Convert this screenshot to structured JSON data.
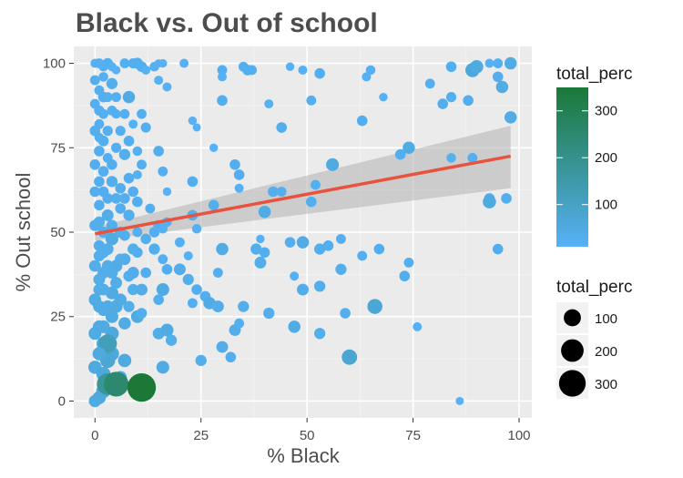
{
  "chart_data": {
    "type": "scatter",
    "title": "Black vs. Out of school",
    "xlabel": "% Black",
    "ylabel": "% Out school",
    "xlim": [
      -5,
      103
    ],
    "ylim": [
      -5,
      105
    ],
    "x_ticks": [
      0,
      25,
      50,
      75,
      100
    ],
    "y_ticks": [
      0,
      25,
      50,
      75,
      100
    ],
    "x_tick_labels": [
      "0",
      "25",
      "50",
      "75",
      "100"
    ],
    "y_tick_labels": [
      "0",
      "25",
      "50",
      "75",
      "100"
    ],
    "grid": true,
    "color_scale": {
      "variable": "total_perc",
      "title": "total_perc",
      "low_color": "#56B1F7",
      "high_color": "#1B7837",
      "low": 10,
      "high": 350,
      "breaks": [
        100,
        200,
        300
      ],
      "break_labels": [
        "100",
        "200",
        "300"
      ]
    },
    "size_scale": {
      "variable": "total_perc",
      "title": "total_perc",
      "breaks": [
        100,
        200,
        300
      ],
      "break_labels": [
        "100",
        "200",
        "300"
      ]
    },
    "legend_position": "right",
    "trend_line": {
      "method": "lm",
      "color": "#E8533F",
      "x": [
        0,
        98
      ],
      "y": [
        49.5,
        72.5
      ],
      "ci_upper_y": [
        51.5,
        81.5
      ],
      "ci_lower_y": [
        47.5,
        63.0
      ],
      "ci_color": "#b3b3b3"
    },
    "points": [
      {
        "x": 0,
        "y": 100,
        "t": 15
      },
      {
        "x": 1,
        "y": 100,
        "t": 20
      },
      {
        "x": 2,
        "y": 99,
        "t": 18
      },
      {
        "x": 3,
        "y": 100,
        "t": 25
      },
      {
        "x": 4,
        "y": 99,
        "t": 15
      },
      {
        "x": 5,
        "y": 98,
        "t": 12
      },
      {
        "x": 7,
        "y": 100,
        "t": 20
      },
      {
        "x": 9,
        "y": 100,
        "t": 22
      },
      {
        "x": 10,
        "y": 100,
        "t": 30
      },
      {
        "x": 11,
        "y": 99,
        "t": 25
      },
      {
        "x": 12,
        "y": 98,
        "t": 15
      },
      {
        "x": 14,
        "y": 99,
        "t": 18
      },
      {
        "x": 15,
        "y": 100,
        "t": 10
      },
      {
        "x": 16,
        "y": 100,
        "t": 12
      },
      {
        "x": 21,
        "y": 100,
        "t": 15
      },
      {
        "x": 30,
        "y": 98,
        "t": 20
      },
      {
        "x": 30,
        "y": 96,
        "t": 15
      },
      {
        "x": 35,
        "y": 99,
        "t": 20
      },
      {
        "x": 36,
        "y": 98,
        "t": 25
      },
      {
        "x": 37,
        "y": 98,
        "t": 20
      },
      {
        "x": 46,
        "y": 99,
        "t": 12
      },
      {
        "x": 49,
        "y": 98,
        "t": 15
      },
      {
        "x": 53,
        "y": 97,
        "t": 25
      },
      {
        "x": 65,
        "y": 98,
        "t": 18
      },
      {
        "x": 64,
        "y": 96,
        "t": 12
      },
      {
        "x": 84,
        "y": 99,
        "t": 25
      },
      {
        "x": 89,
        "y": 98,
        "t": 60
      },
      {
        "x": 90,
        "y": 99,
        "t": 50
      },
      {
        "x": 93,
        "y": 100,
        "t": 15
      },
      {
        "x": 95,
        "y": 100,
        "t": 20
      },
      {
        "x": 98,
        "y": 100,
        "t": 40
      },
      {
        "x": 2,
        "y": 90,
        "t": 25
      },
      {
        "x": 4,
        "y": 94,
        "t": 30
      },
      {
        "x": 8,
        "y": 90,
        "t": 40
      },
      {
        "x": 15,
        "y": 95,
        "t": 15
      },
      {
        "x": 17,
        "y": 93,
        "t": 15
      },
      {
        "x": 30,
        "y": 89,
        "t": 25
      },
      {
        "x": 41,
        "y": 88,
        "t": 15
      },
      {
        "x": 51,
        "y": 89,
        "t": 20
      },
      {
        "x": 64,
        "y": 96,
        "t": 15
      },
      {
        "x": 68,
        "y": 90,
        "t": 12
      },
      {
        "x": 79,
        "y": 94,
        "t": 20
      },
      {
        "x": 82,
        "y": 88,
        "t": 25
      },
      {
        "x": 84,
        "y": 90,
        "t": 22
      },
      {
        "x": 88,
        "y": 89,
        "t": 25
      },
      {
        "x": 96,
        "y": 93,
        "t": 40
      },
      {
        "x": 95,
        "y": 96,
        "t": 25
      },
      {
        "x": 1,
        "y": 82,
        "t": 20
      },
      {
        "x": 5,
        "y": 85,
        "t": 18
      },
      {
        "x": 9,
        "y": 82,
        "t": 15
      },
      {
        "x": 11,
        "y": 85,
        "t": 20
      },
      {
        "x": 12,
        "y": 81,
        "t": 22
      },
      {
        "x": 23,
        "y": 83,
        "t": 12
      },
      {
        "x": 24,
        "y": 81,
        "t": 10
      },
      {
        "x": 44,
        "y": 81,
        "t": 25
      },
      {
        "x": 63,
        "y": 83,
        "t": 25
      },
      {
        "x": 98,
        "y": 84,
        "t": 40
      },
      {
        "x": 1,
        "y": 78,
        "t": 18
      },
      {
        "x": 3,
        "y": 72,
        "t": 20
      },
      {
        "x": 5,
        "y": 75,
        "t": 22
      },
      {
        "x": 7,
        "y": 73,
        "t": 30
      },
      {
        "x": 10,
        "y": 74,
        "t": 18
      },
      {
        "x": 15,
        "y": 74,
        "t": 25
      },
      {
        "x": 28,
        "y": 75,
        "t": 12
      },
      {
        "x": 33,
        "y": 70,
        "t": 25
      },
      {
        "x": 56,
        "y": 70,
        "t": 45
      },
      {
        "x": 72,
        "y": 73,
        "t": 25
      },
      {
        "x": 74,
        "y": 75,
        "t": 40
      },
      {
        "x": 84,
        "y": 72,
        "t": 18
      },
      {
        "x": 89,
        "y": 72,
        "t": 20
      },
      {
        "x": 2,
        "y": 68,
        "t": 25
      },
      {
        "x": 4,
        "y": 65,
        "t": 30
      },
      {
        "x": 8,
        "y": 66,
        "t": 25
      },
      {
        "x": 10,
        "y": 67,
        "t": 15
      },
      {
        "x": 11,
        "y": 70,
        "t": 20
      },
      {
        "x": 16,
        "y": 68,
        "t": 20
      },
      {
        "x": 17,
        "y": 62,
        "t": 12
      },
      {
        "x": 23,
        "y": 65,
        "t": 25
      },
      {
        "x": 34,
        "y": 67,
        "t": 25
      },
      {
        "x": 34,
        "y": 63,
        "t": 15
      },
      {
        "x": 42,
        "y": 62,
        "t": 25
      },
      {
        "x": 44,
        "y": 62,
        "t": 20
      },
      {
        "x": 52,
        "y": 64,
        "t": 20
      },
      {
        "x": 93,
        "y": 60,
        "t": 25
      },
      {
        "x": 93,
        "y": 59,
        "t": 50
      },
      {
        "x": 97,
        "y": 60,
        "t": 25
      },
      {
        "x": 1,
        "y": 58,
        "t": 25
      },
      {
        "x": 3,
        "y": 55,
        "t": 35
      },
      {
        "x": 6,
        "y": 57,
        "t": 25
      },
      {
        "x": 10,
        "y": 59,
        "t": 25
      },
      {
        "x": 13,
        "y": 57,
        "t": 20
      },
      {
        "x": 15,
        "y": 52,
        "t": 25
      },
      {
        "x": 17,
        "y": 53,
        "t": 18
      },
      {
        "x": 23,
        "y": 55,
        "t": 25
      },
      {
        "x": 28,
        "y": 58,
        "t": 25
      },
      {
        "x": 40,
        "y": 56,
        "t": 40
      },
      {
        "x": 51,
        "y": 59,
        "t": 25
      },
      {
        "x": 2,
        "y": 50,
        "t": 30
      },
      {
        "x": 4,
        "y": 48,
        "t": 45
      },
      {
        "x": 7,
        "y": 49,
        "t": 25
      },
      {
        "x": 10,
        "y": 50,
        "t": 20
      },
      {
        "x": 12,
        "y": 48,
        "t": 25
      },
      {
        "x": 14,
        "y": 50,
        "t": 25
      },
      {
        "x": 16,
        "y": 51,
        "t": 18
      },
      {
        "x": 20,
        "y": 47,
        "t": 20
      },
      {
        "x": 24,
        "y": 51,
        "t": 18
      },
      {
        "x": 39,
        "y": 48,
        "t": 12
      },
      {
        "x": 46,
        "y": 47,
        "t": 25
      },
      {
        "x": 49,
        "y": 47,
        "t": 40
      },
      {
        "x": 58,
        "y": 48,
        "t": 20
      },
      {
        "x": 95,
        "y": 45,
        "t": 25
      },
      {
        "x": 1,
        "y": 43,
        "t": 30
      },
      {
        "x": 3,
        "y": 45,
        "t": 35
      },
      {
        "x": 6,
        "y": 42,
        "t": 30
      },
      {
        "x": 10,
        "y": 44,
        "t": 25
      },
      {
        "x": 14,
        "y": 45,
        "t": 30
      },
      {
        "x": 16,
        "y": 42,
        "t": 20
      },
      {
        "x": 22,
        "y": 43,
        "t": 15
      },
      {
        "x": 30,
        "y": 45,
        "t": 40
      },
      {
        "x": 38,
        "y": 45,
        "t": 30
      },
      {
        "x": 40,
        "y": 44,
        "t": 25
      },
      {
        "x": 53,
        "y": 45,
        "t": 30
      },
      {
        "x": 55,
        "y": 46,
        "t": 25
      },
      {
        "x": 63,
        "y": 43,
        "t": 20
      },
      {
        "x": 67,
        "y": 45,
        "t": 25
      },
      {
        "x": 74,
        "y": 41,
        "t": 20
      },
      {
        "x": 2,
        "y": 38,
        "t": 35
      },
      {
        "x": 5,
        "y": 40,
        "t": 40
      },
      {
        "x": 8,
        "y": 37,
        "t": 30
      },
      {
        "x": 12,
        "y": 38,
        "t": 25
      },
      {
        "x": 17,
        "y": 39,
        "t": 25
      },
      {
        "x": 20,
        "y": 39,
        "t": 35
      },
      {
        "x": 22,
        "y": 36,
        "t": 30
      },
      {
        "x": 29,
        "y": 38,
        "t": 20
      },
      {
        "x": 39,
        "y": 41,
        "t": 35
      },
      {
        "x": 47,
        "y": 37,
        "t": 15
      },
      {
        "x": 58,
        "y": 39,
        "t": 30
      },
      {
        "x": 73,
        "y": 37,
        "t": 25
      },
      {
        "x": 1,
        "y": 33,
        "t": 35
      },
      {
        "x": 4,
        "y": 32,
        "t": 45
      },
      {
        "x": 9,
        "y": 33,
        "t": 30
      },
      {
        "x": 11,
        "y": 33,
        "t": 35
      },
      {
        "x": 16,
        "y": 33,
        "t": 45
      },
      {
        "x": 24,
        "y": 33,
        "t": 25
      },
      {
        "x": 26,
        "y": 31,
        "t": 25
      },
      {
        "x": 49,
        "y": 33,
        "t": 35
      },
      {
        "x": 53,
        "y": 34,
        "t": 30
      },
      {
        "x": 2,
        "y": 27,
        "t": 40
      },
      {
        "x": 5,
        "y": 28,
        "t": 45
      },
      {
        "x": 8,
        "y": 28,
        "t": 30
      },
      {
        "x": 15,
        "y": 30,
        "t": 25
      },
      {
        "x": 23,
        "y": 29,
        "t": 20
      },
      {
        "x": 27,
        "y": 29,
        "t": 40
      },
      {
        "x": 29,
        "y": 28,
        "t": 35
      },
      {
        "x": 35,
        "y": 28,
        "t": 30
      },
      {
        "x": 41,
        "y": 26,
        "t": 30
      },
      {
        "x": 59,
        "y": 26,
        "t": 25
      },
      {
        "x": 66,
        "y": 28,
        "t": 70
      },
      {
        "x": 1,
        "y": 22,
        "t": 45
      },
      {
        "x": 4,
        "y": 20,
        "t": 55
      },
      {
        "x": 7,
        "y": 23,
        "t": 40
      },
      {
        "x": 10,
        "y": 25,
        "t": 45
      },
      {
        "x": 11,
        "y": 26,
        "t": 25
      },
      {
        "x": 15,
        "y": 20,
        "t": 35
      },
      {
        "x": 17,
        "y": 21,
        "t": 45
      },
      {
        "x": 18,
        "y": 18,
        "t": 30
      },
      {
        "x": 33,
        "y": 21,
        "t": 35
      },
      {
        "x": 34,
        "y": 23,
        "t": 20
      },
      {
        "x": 47,
        "y": 22,
        "t": 40
      },
      {
        "x": 53,
        "y": 20,
        "t": 30
      },
      {
        "x": 76,
        "y": 22,
        "t": 15
      },
      {
        "x": 2,
        "y": 17,
        "t": 55
      },
      {
        "x": 4,
        "y": 14,
        "t": 60
      },
      {
        "x": 7,
        "y": 12,
        "t": 50
      },
      {
        "x": 30,
        "y": 16,
        "t": 35
      },
      {
        "x": 32,
        "y": 13,
        "t": 25
      },
      {
        "x": 60,
        "y": 13,
        "t": 75
      },
      {
        "x": 3,
        "y": 17,
        "t": 120
      },
      {
        "x": 0,
        "y": 10,
        "t": 50
      },
      {
        "x": 2,
        "y": 8,
        "t": 60
      },
      {
        "x": 3,
        "y": 12,
        "t": 70
      },
      {
        "x": 6,
        "y": 7,
        "t": 45
      },
      {
        "x": 16,
        "y": 10,
        "t": 45
      },
      {
        "x": 25,
        "y": 12,
        "t": 30
      },
      {
        "x": 0,
        "y": 0,
        "t": 40
      },
      {
        "x": 1,
        "y": 1,
        "t": 50
      },
      {
        "x": 2,
        "y": 3,
        "t": 60
      },
      {
        "x": 3,
        "y": 5,
        "t": 180
      },
      {
        "x": 4,
        "y": 5,
        "t": 60
      },
      {
        "x": 5,
        "y": 5,
        "t": 250
      },
      {
        "x": 11,
        "y": 4,
        "t": 350
      },
      {
        "x": 86,
        "y": 0,
        "t": 10
      },
      {
        "x": 0,
        "y": 95,
        "t": 20
      },
      {
        "x": 0,
        "y": 88,
        "t": 20
      },
      {
        "x": 0,
        "y": 80,
        "t": 25
      },
      {
        "x": 0,
        "y": 70,
        "t": 25
      },
      {
        "x": 0,
        "y": 62,
        "t": 25
      },
      {
        "x": 0,
        "y": 52,
        "t": 30
      },
      {
        "x": 0,
        "y": 40,
        "t": 35
      },
      {
        "x": 0,
        "y": 30,
        "t": 40
      },
      {
        "x": 0,
        "y": 20,
        "t": 45
      },
      {
        "x": 1,
        "y": 92,
        "t": 20
      },
      {
        "x": 1,
        "y": 86,
        "t": 22
      },
      {
        "x": 1,
        "y": 74,
        "t": 25
      },
      {
        "x": 1,
        "y": 65,
        "t": 25
      },
      {
        "x": 1,
        "y": 53,
        "t": 30
      },
      {
        "x": 1,
        "y": 46,
        "t": 30
      },
      {
        "x": 1,
        "y": 36,
        "t": 35
      },
      {
        "x": 1,
        "y": 28,
        "t": 40
      },
      {
        "x": 1,
        "y": 14,
        "t": 50
      },
      {
        "x": 2,
        "y": 96,
        "t": 18
      },
      {
        "x": 2,
        "y": 85,
        "t": 20
      },
      {
        "x": 2,
        "y": 77,
        "t": 25
      },
      {
        "x": 2,
        "y": 62,
        "t": 25
      },
      {
        "x": 2,
        "y": 44,
        "t": 30
      },
      {
        "x": 2,
        "y": 33,
        "t": 35
      },
      {
        "x": 2,
        "y": 22,
        "t": 45
      },
      {
        "x": 3,
        "y": 90,
        "t": 20
      },
      {
        "x": 3,
        "y": 80,
        "t": 22
      },
      {
        "x": 3,
        "y": 60,
        "t": 25
      },
      {
        "x": 3,
        "y": 40,
        "t": 35
      },
      {
        "x": 3,
        "y": 28,
        "t": 40
      },
      {
        "x": 4,
        "y": 86,
        "t": 20
      },
      {
        "x": 4,
        "y": 70,
        "t": 25
      },
      {
        "x": 4,
        "y": 52,
        "t": 30
      },
      {
        "x": 4,
        "y": 38,
        "t": 35
      },
      {
        "x": 4,
        "y": 25,
        "t": 45
      },
      {
        "x": 5,
        "y": 90,
        "t": 20
      },
      {
        "x": 5,
        "y": 60,
        "t": 25
      },
      {
        "x": 5,
        "y": 35,
        "t": 35
      },
      {
        "x": 6,
        "y": 80,
        "t": 22
      },
      {
        "x": 6,
        "y": 63,
        "t": 25
      },
      {
        "x": 6,
        "y": 50,
        "t": 30
      },
      {
        "x": 6,
        "y": 30,
        "t": 40
      },
      {
        "x": 7,
        "y": 85,
        "t": 20
      },
      {
        "x": 7,
        "y": 60,
        "t": 25
      },
      {
        "x": 7,
        "y": 42,
        "t": 35
      },
      {
        "x": 8,
        "y": 77,
        "t": 25
      },
      {
        "x": 8,
        "y": 55,
        "t": 30
      },
      {
        "x": 9,
        "y": 62,
        "t": 25
      },
      {
        "x": 9,
        "y": 45,
        "t": 30
      },
      {
        "x": 9,
        "y": 38,
        "t": 35
      }
    ]
  }
}
